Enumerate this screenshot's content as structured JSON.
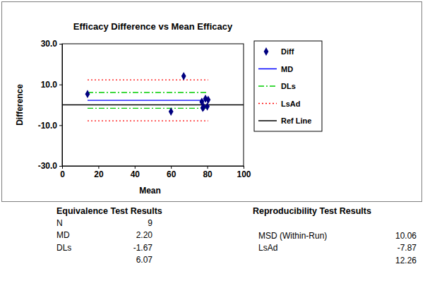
{
  "chart_data": {
    "type": "scatter",
    "title": "Efficacy Difference vs Mean Efficacy",
    "x_label": "Mean",
    "y_label": "Difference",
    "xlim": [
      0,
      100
    ],
    "xticks": [
      0,
      20,
      40,
      60,
      80,
      100
    ],
    "ylim": [
      -30,
      30
    ],
    "yticks": [
      {
        "value": -30,
        "label": "-30.0"
      },
      {
        "value": -10,
        "label": "-10.0"
      },
      {
        "value": 10,
        "label": "10.0"
      },
      {
        "value": 30,
        "label": "30.0"
      }
    ],
    "grid": false,
    "legend": "right",
    "series": [
      {
        "name": "Diff",
        "type": "scatter",
        "marker": "diamond",
        "color": "#000080",
        "x": [
          14,
          67,
          60,
          77,
          77.5,
          79,
          80,
          80.5,
          78
        ],
        "values": [
          5.3,
          14.1,
          -3.3,
          1.5,
          -1.5,
          3.0,
          -0.8,
          2.5,
          -1.0
        ]
      },
      {
        "name": "MD",
        "type": "hline",
        "line_style": "solid",
        "color": "#0000ff",
        "values": [
          2.2
        ]
      },
      {
        "name": "DLs",
        "type": "hline",
        "line_style": "dashdot",
        "color": "#00cc00",
        "values": [
          -1.67,
          6.07
        ]
      },
      {
        "name": "LsAd",
        "type": "hline",
        "line_style": "dotted",
        "color": "#ff0000",
        "values": [
          -7.87,
          12.26
        ]
      },
      {
        "name": "Ref Line",
        "type": "refline",
        "line_style": "solid",
        "color": "#000000",
        "values": [
          0
        ]
      }
    ]
  },
  "tables": [
    {
      "title": "Equivalence Test Results",
      "rows": [
        {
          "label": "N",
          "values": [
            "9"
          ]
        },
        {
          "label": "MD",
          "values": [
            "2.20"
          ]
        },
        {
          "label": "DLs",
          "values": [
            "-1.67",
            "6.07"
          ]
        }
      ]
    },
    {
      "title": "Reproducibility Test Results",
      "rows": [
        {
          "label": "MSD (Within-Run)",
          "values": [
            "10.06"
          ]
        },
        {
          "label": "LsAd",
          "values": [
            "-7.87",
            "12.26"
          ]
        }
      ]
    }
  ]
}
